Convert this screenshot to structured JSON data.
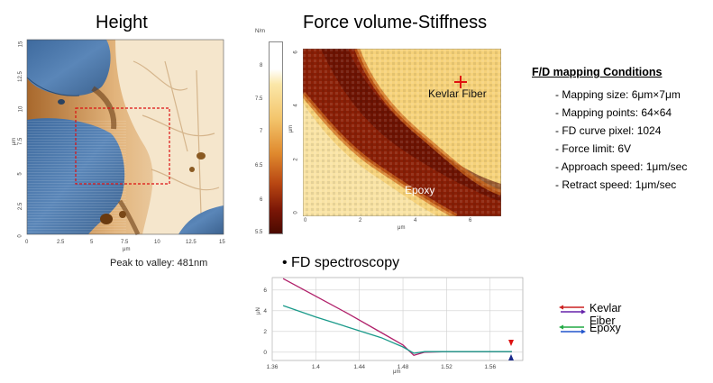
{
  "height_panel": {
    "title": "Height",
    "axis_unit": "μm",
    "ticks": [
      "0",
      "2.5",
      "5",
      "7.5",
      "10",
      "12.5",
      "15"
    ],
    "caption": "Peak to valley: 481nm"
  },
  "stiffness_panel": {
    "title": "Force volume-Stiffness",
    "colorbar_unit": "N/m",
    "colorbar_ticks": [
      "8",
      "7.5",
      "7",
      "6.5",
      "6",
      "5.5"
    ],
    "x_ticks": [
      "0",
      "2",
      "4",
      "6"
    ],
    "y_ticks": [
      "0",
      "2",
      "4",
      "6"
    ],
    "axis_unit": "μm",
    "labels": {
      "kevlar": "Kevlar Fiber",
      "epoxy": "Epoxy"
    }
  },
  "conditions": {
    "title": "F/D mapping Conditions",
    "items": [
      "Mapping size: 6μm×7μm",
      "Mapping points: 64×64",
      "FD curve pixel: 1024",
      "Force limit: 6V",
      "Approach speed: 1μm/sec",
      "Retract speed: 1μm/sec"
    ]
  },
  "fd_section": {
    "title": "• FD spectroscopy"
  },
  "chart_data": {
    "type": "line",
    "xlabel": "μm",
    "ylabel": "μN",
    "xlim": [
      1.36,
      1.59
    ],
    "ylim": [
      -0.8,
      7.2
    ],
    "x_ticks": [
      "1.36",
      "1.4",
      "1.44",
      "1.48",
      "1.52",
      "1.56"
    ],
    "y_ticks": [
      "0",
      "2",
      "4",
      "6"
    ],
    "series": [
      {
        "name": "Kevlar Fiber",
        "color": "#b0206a",
        "x": [
          1.37,
          1.4,
          1.43,
          1.46,
          1.48,
          1.49,
          1.5,
          1.52,
          1.56,
          1.58
        ],
        "y": [
          7.1,
          5.4,
          3.7,
          1.9,
          0.7,
          -0.3,
          0.0,
          0.05,
          0.05,
          0.05
        ]
      },
      {
        "name": "Epoxy",
        "color": "#1a9a8a",
        "x": [
          1.37,
          1.4,
          1.43,
          1.46,
          1.48,
          1.49,
          1.5,
          1.52,
          1.56,
          1.58
        ],
        "y": [
          4.5,
          3.4,
          2.4,
          1.4,
          0.5,
          -0.1,
          0.05,
          0.05,
          0.05,
          0.05
        ]
      }
    ]
  },
  "legend": {
    "items": [
      {
        "label": "Kevlar Fiber",
        "arrow_top": "#cc2222",
        "arrow_bottom": "#6622aa"
      },
      {
        "label": "Epoxy",
        "arrow_top": "#22aa44",
        "arrow_bottom": "#2255cc"
      }
    ]
  }
}
